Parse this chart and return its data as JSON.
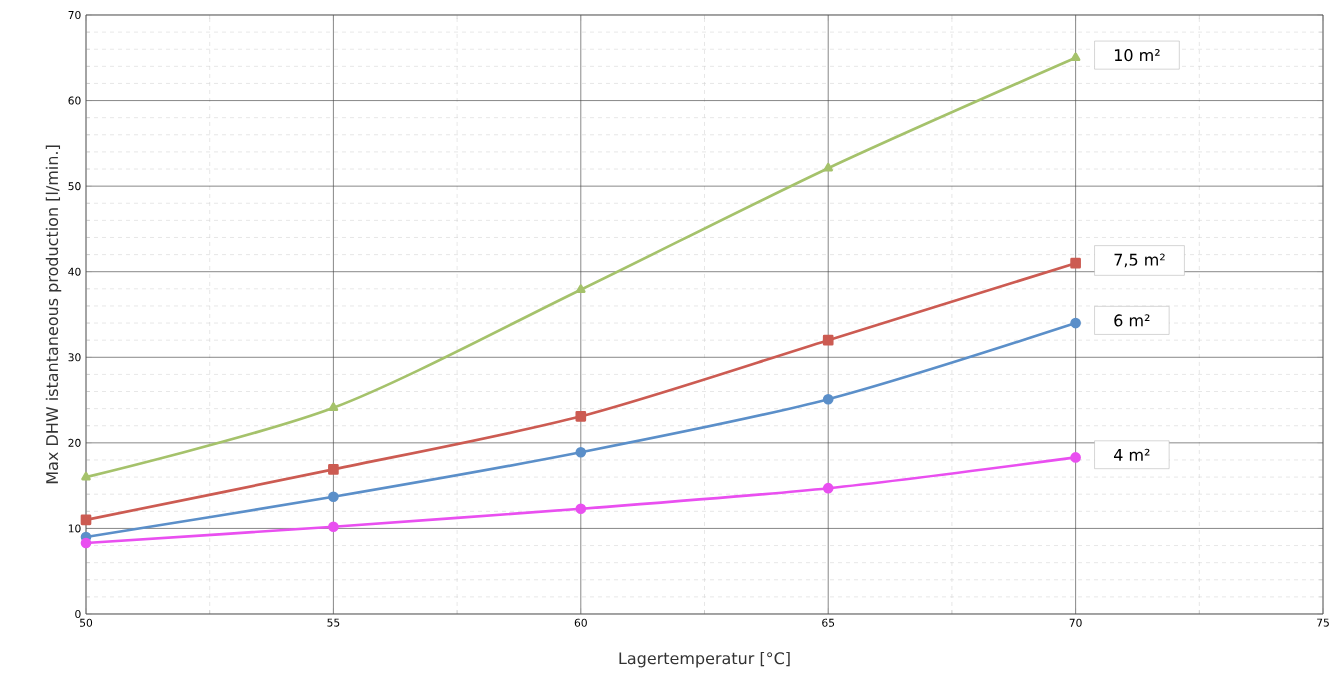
{
  "chart_data": {
    "type": "line",
    "xlabel": "Lagertemperatur [°C]",
    "ylabel": "Max DHW istantaneous production [l/min.]",
    "x": [
      50,
      55,
      60,
      65,
      70
    ],
    "series": [
      {
        "name": "10 m²",
        "color": "#a5c26b",
        "marker": "triangle",
        "values": [
          16,
          24.1,
          37.9,
          52.1,
          65
        ]
      },
      {
        "name": "7,5 m²",
        "color": "#cc5b52",
        "marker": "square",
        "values": [
          11,
          16.9,
          23.1,
          32,
          41
        ]
      },
      {
        "name": "6 m²",
        "color": "#5b8fc9",
        "marker": "circle",
        "values": [
          9,
          13.7,
          18.9,
          25.1,
          34
        ]
      },
      {
        "name": "4 m²",
        "color": "#e94ff0",
        "marker": "circle",
        "values": [
          8.3,
          10.2,
          12.3,
          14.7,
          18.3
        ]
      }
    ],
    "xlim": [
      50,
      75
    ],
    "ylim": [
      0,
      70
    ],
    "xticks": [
      50,
      55,
      60,
      65,
      70,
      75
    ],
    "yticks": [
      0,
      10,
      20,
      30,
      40,
      50,
      60,
      70
    ],
    "grid": true,
    "line_style": "solid"
  }
}
